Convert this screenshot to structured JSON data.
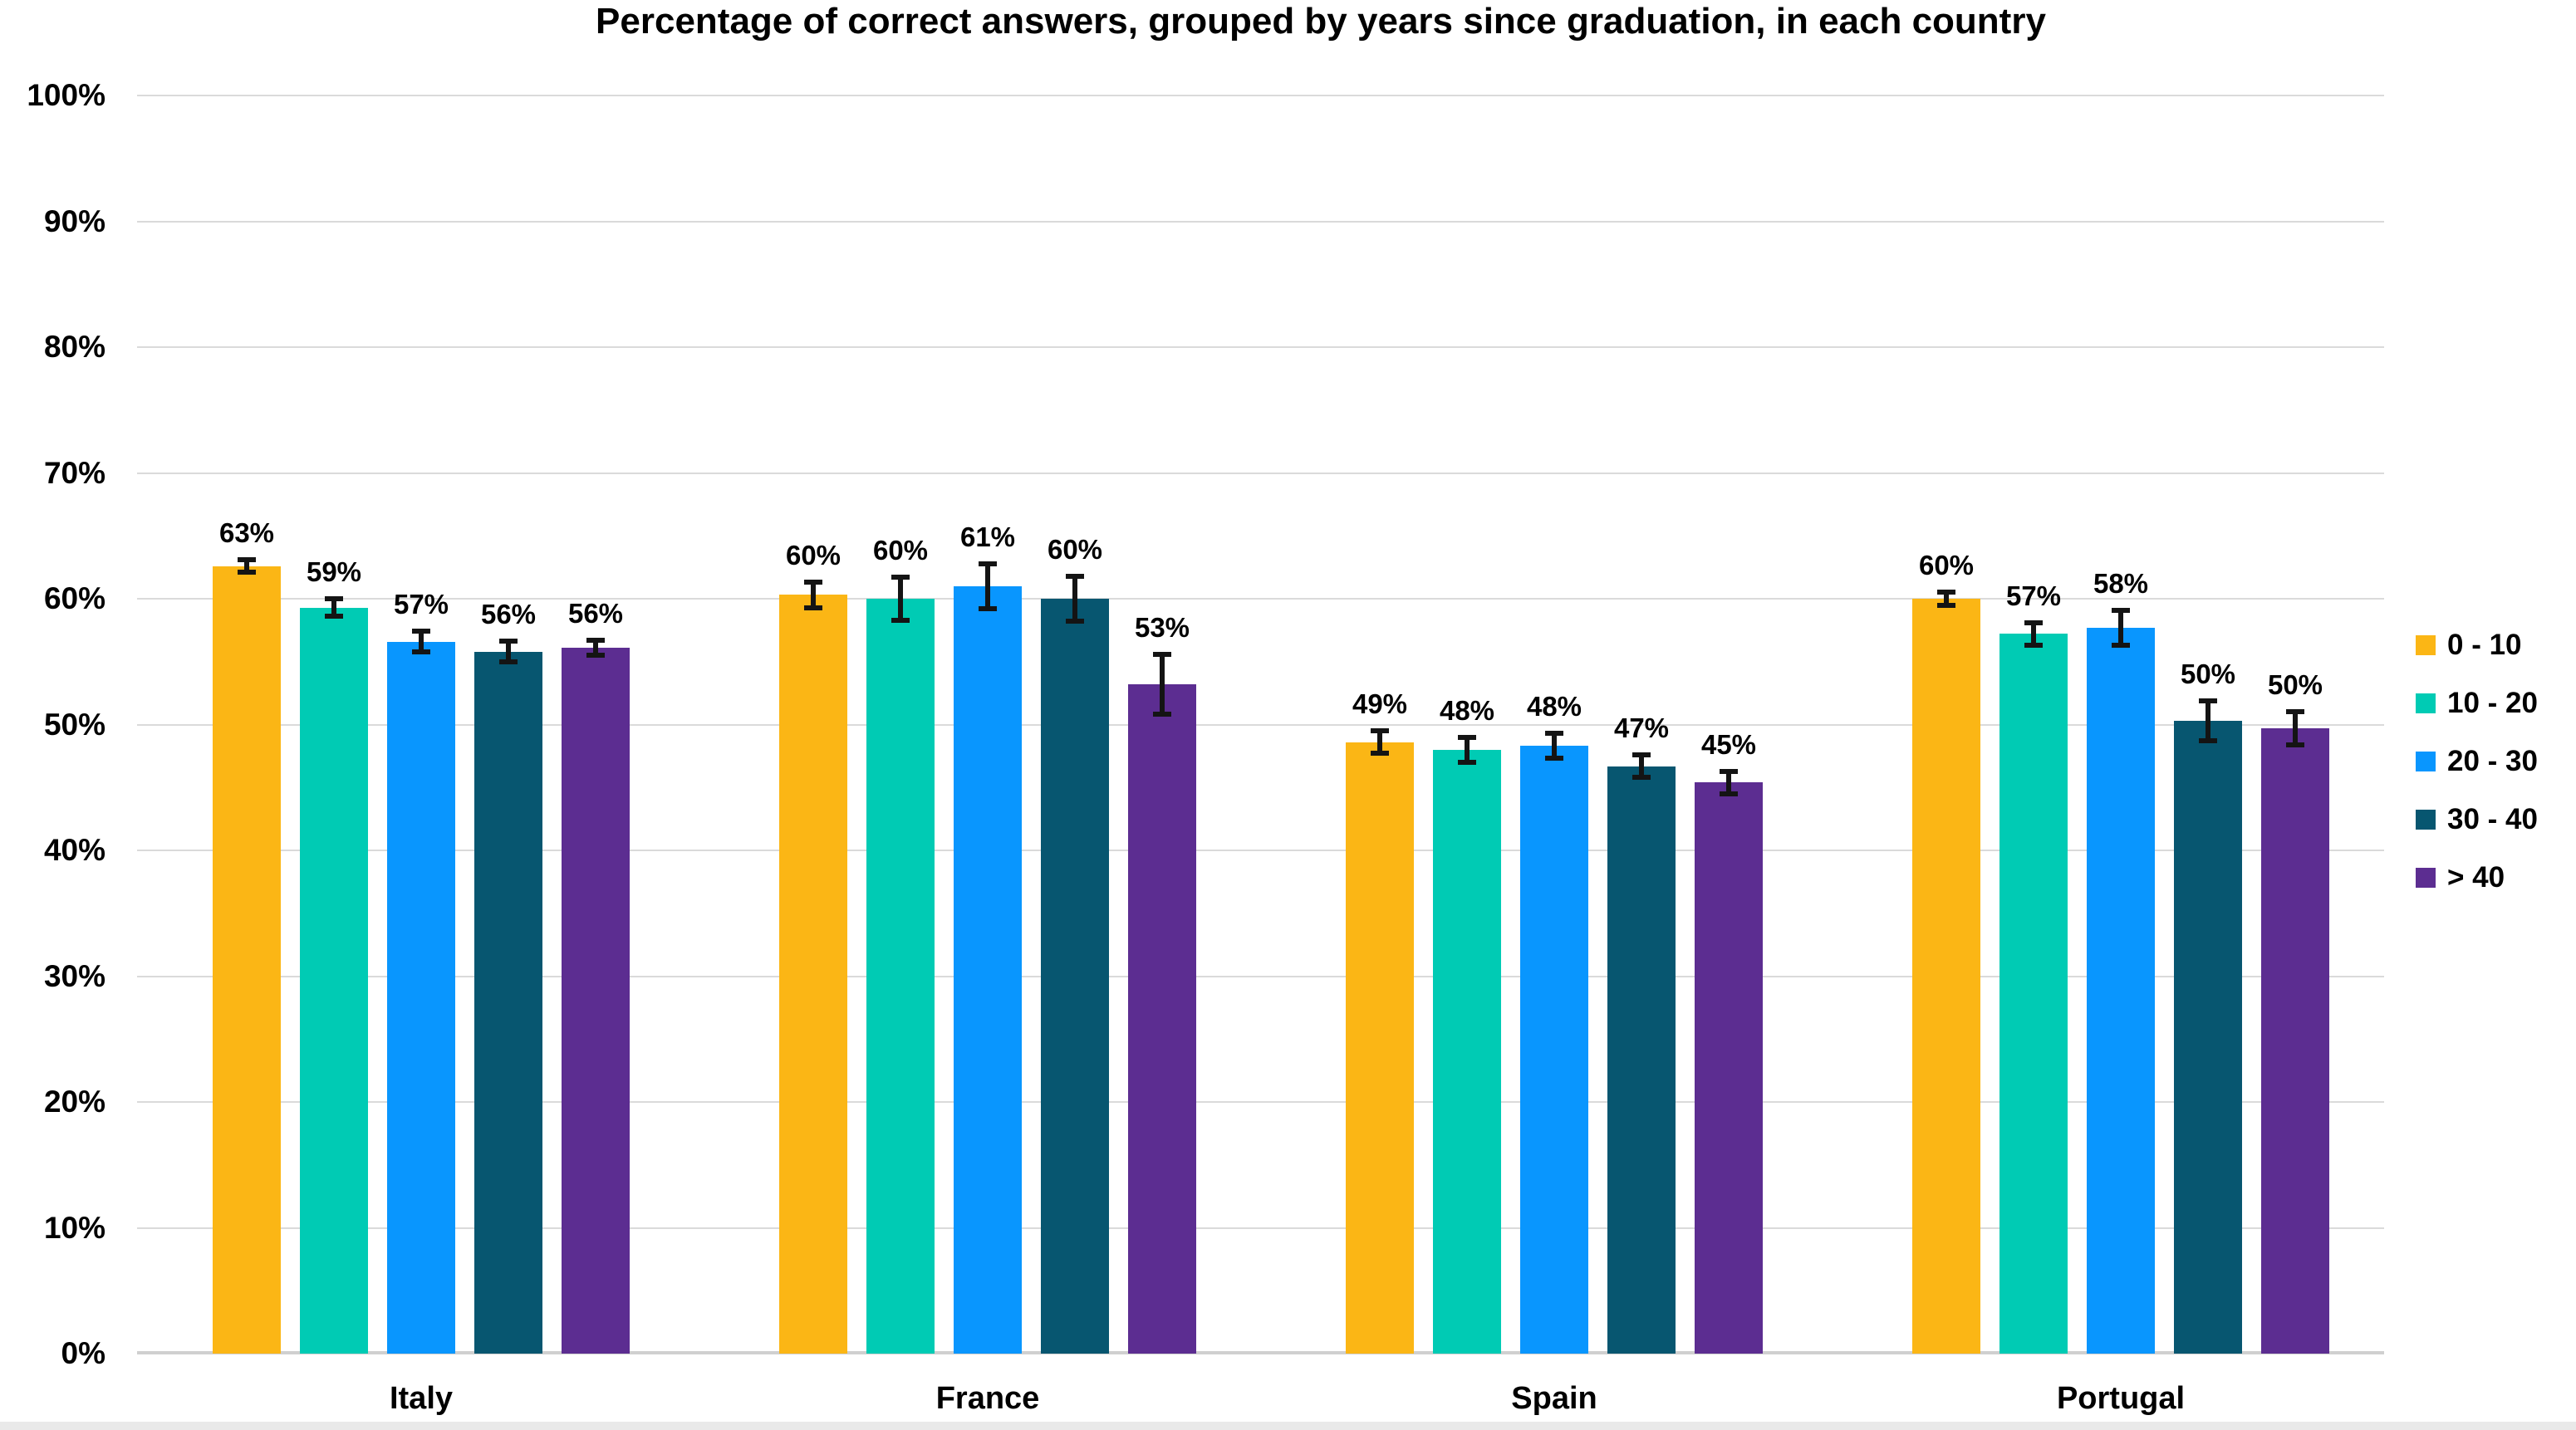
{
  "title": "Percentage of correct answers, grouped by years since graduation, in each country",
  "y_axis": {
    "tick_labels": [
      "0%",
      "10%",
      "20%",
      "30%",
      "40%",
      "50%",
      "60%",
      "70%",
      "80%",
      "90%",
      "100%"
    ],
    "min": 0,
    "max": 100,
    "step": 10
  },
  "legend": {
    "position": "right",
    "items": [
      {
        "label": "0 - 10",
        "color": "#fbb615"
      },
      {
        "label": "10 - 20",
        "color": "#00cbb4"
      },
      {
        "label": "20 - 30",
        "color": "#0996fe"
      },
      {
        "label": "30 - 40",
        "color": "#075670"
      },
      {
        "label": "> 40",
        "color": "#5c2d91"
      }
    ]
  },
  "chart_data": {
    "type": "bar",
    "title": "Percentage of correct answers, grouped by years since graduation, in each country",
    "categories": [
      "Italy",
      "France",
      "Spain",
      "Portugal"
    ],
    "series": [
      {
        "name": "0 - 10",
        "color": "#fbb615",
        "values": [
          63,
          60,
          49,
          60
        ],
        "bar_heights": [
          62.6,
          60.3,
          48.6,
          60.0
        ],
        "errors": [
          0.7,
          1.2,
          1.1,
          0.7
        ]
      },
      {
        "name": "10 - 20",
        "color": "#00cbb4",
        "values": [
          59,
          60,
          48,
          57
        ],
        "bar_heights": [
          59.3,
          60.0,
          48.0,
          57.2
        ],
        "errors": [
          0.9,
          1.9,
          1.2,
          1.1
        ]
      },
      {
        "name": "20 - 30",
        "color": "#0996fe",
        "values": [
          57,
          61,
          48,
          58
        ],
        "bar_heights": [
          56.6,
          61.0,
          48.3,
          57.7
        ],
        "errors": [
          1.0,
          2.0,
          1.2,
          1.6
        ]
      },
      {
        "name": "30 - 40",
        "color": "#075670",
        "values": [
          56,
          60,
          47,
          50
        ],
        "bar_heights": [
          55.8,
          60.0,
          46.7,
          50.3
        ],
        "errors": [
          1.0,
          2.0,
          1.1,
          1.8
        ]
      },
      {
        "name": "> 40",
        "color": "#5c2d91",
        "values": [
          56,
          53,
          45,
          50
        ],
        "bar_heights": [
          56.1,
          53.2,
          45.4,
          49.7
        ],
        "errors": [
          0.8,
          2.6,
          1.1,
          1.5
        ]
      }
    ],
    "value_label_suffix": "%",
    "xlabel": "",
    "ylabel": "",
    "ylim": [
      0,
      100
    ],
    "grid": true,
    "legend_position": "right",
    "error_bars": true
  }
}
